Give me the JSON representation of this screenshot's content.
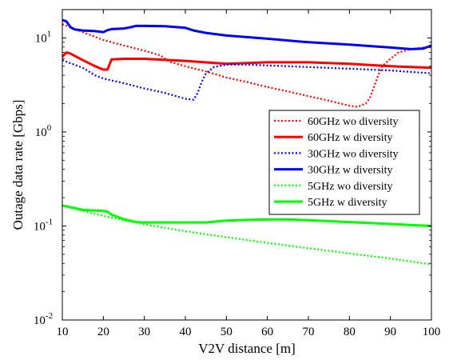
{
  "chart_data": {
    "type": "line",
    "xlabel": "V2V distance [m]",
    "ylabel": "Outage data rate [Gbps]",
    "xlim": [
      10,
      100
    ],
    "ylim": [
      0.01,
      20
    ],
    "yscale": "log",
    "grid": false,
    "legend_position": "right",
    "x_ticks": [
      {
        "value": 10,
        "label": "10"
      },
      {
        "value": 20,
        "label": "20"
      },
      {
        "value": 30,
        "label": "30"
      },
      {
        "value": 40,
        "label": "40"
      },
      {
        "value": 50,
        "label": "50"
      },
      {
        "value": 60,
        "label": "60"
      },
      {
        "value": 70,
        "label": "70"
      },
      {
        "value": 80,
        "label": "80"
      },
      {
        "value": 90,
        "label": "90"
      },
      {
        "value": 100,
        "label": "100"
      }
    ],
    "y_ticks": [
      {
        "value": 0.01,
        "base": "10",
        "exp": "-2"
      },
      {
        "value": 0.1,
        "base": "10",
        "exp": "-1"
      },
      {
        "value": 1,
        "base": "10",
        "exp": "0"
      },
      {
        "value": 10,
        "base": "10",
        "exp": "1"
      }
    ],
    "series": [
      {
        "name": "60GHz wo diversity",
        "color": "#ff0000",
        "style": "dotted",
        "x": [
          10,
          12,
          15,
          20,
          25,
          30,
          34,
          36,
          40,
          45,
          50,
          55,
          60,
          65,
          70,
          75,
          80,
          82,
          84,
          85,
          86,
          87,
          88,
          90,
          92,
          95,
          98,
          100
        ],
        "y": [
          14,
          13,
          11.5,
          9.5,
          8.3,
          7.3,
          6.5,
          5.6,
          5.0,
          4.4,
          3.8,
          3.4,
          3.0,
          2.7,
          2.4,
          2.15,
          1.9,
          1.85,
          2.0,
          2.3,
          3.0,
          4.0,
          5.0,
          6.0,
          7.0,
          7.6,
          7.9,
          8.0
        ]
      },
      {
        "name": "60GHz w diversity",
        "color": "#ff0000",
        "style": "solid",
        "x": [
          10,
          11,
          12,
          15,
          18,
          20,
          21,
          22,
          25,
          30,
          40,
          50,
          60,
          70,
          80,
          90,
          100
        ],
        "y": [
          6.3,
          7.0,
          6.8,
          5.8,
          5.0,
          4.6,
          4.6,
          5.9,
          6.0,
          6.0,
          5.7,
          5.3,
          5.5,
          5.5,
          5.3,
          5.0,
          4.8
        ]
      },
      {
        "name": "30GHz wo diversity",
        "color": "#0000ff",
        "style": "dotted",
        "x": [
          10,
          15,
          18,
          20,
          25,
          30,
          35,
          40,
          42,
          43,
          44,
          45,
          47,
          50,
          55,
          60,
          70,
          80,
          90,
          100
        ],
        "y": [
          5.8,
          4.8,
          4.0,
          3.7,
          3.3,
          2.9,
          2.6,
          2.25,
          2.2,
          2.6,
          3.4,
          4.2,
          4.9,
          5.2,
          5.2,
          5.1,
          4.9,
          4.7,
          4.5,
          4.2
        ]
      },
      {
        "name": "30GHz w diversity",
        "color": "#0000ff",
        "style": "solid",
        "x": [
          10,
          11,
          12,
          13,
          15,
          18,
          20,
          21,
          22,
          25,
          27,
          28,
          30,
          35,
          40,
          42,
          45,
          50,
          60,
          70,
          80,
          90,
          95,
          98,
          100
        ],
        "y": [
          15.5,
          15.0,
          13.0,
          12.3,
          12.0,
          11.8,
          11.5,
          12.1,
          12.4,
          12.6,
          13.1,
          13.4,
          13.4,
          13.3,
          12.8,
          12.0,
          11.3,
          10.6,
          9.8,
          9.0,
          8.5,
          7.9,
          7.6,
          7.7,
          8.3
        ]
      },
      {
        "name": "5GHz wo diversity",
        "color": "#00ff00",
        "style": "dotted",
        "x": [
          10,
          15,
          20,
          25,
          30,
          40,
          50,
          60,
          70,
          80,
          90,
          100
        ],
        "y": [
          0.165,
          0.145,
          0.128,
          0.115,
          0.104,
          0.088,
          0.076,
          0.066,
          0.058,
          0.051,
          0.045,
          0.039
        ]
      },
      {
        "name": "5GHz w diversity",
        "color": "#00ff00",
        "style": "solid",
        "x": [
          10,
          15,
          20,
          21,
          22,
          25,
          28,
          30,
          35,
          40,
          45,
          50,
          55,
          60,
          65,
          70,
          80,
          90,
          100
        ],
        "y": [
          0.165,
          0.148,
          0.145,
          0.142,
          0.132,
          0.118,
          0.11,
          0.109,
          0.109,
          0.109,
          0.109,
          0.114,
          0.116,
          0.117,
          0.117,
          0.115,
          0.11,
          0.105,
          0.1
        ]
      }
    ]
  }
}
